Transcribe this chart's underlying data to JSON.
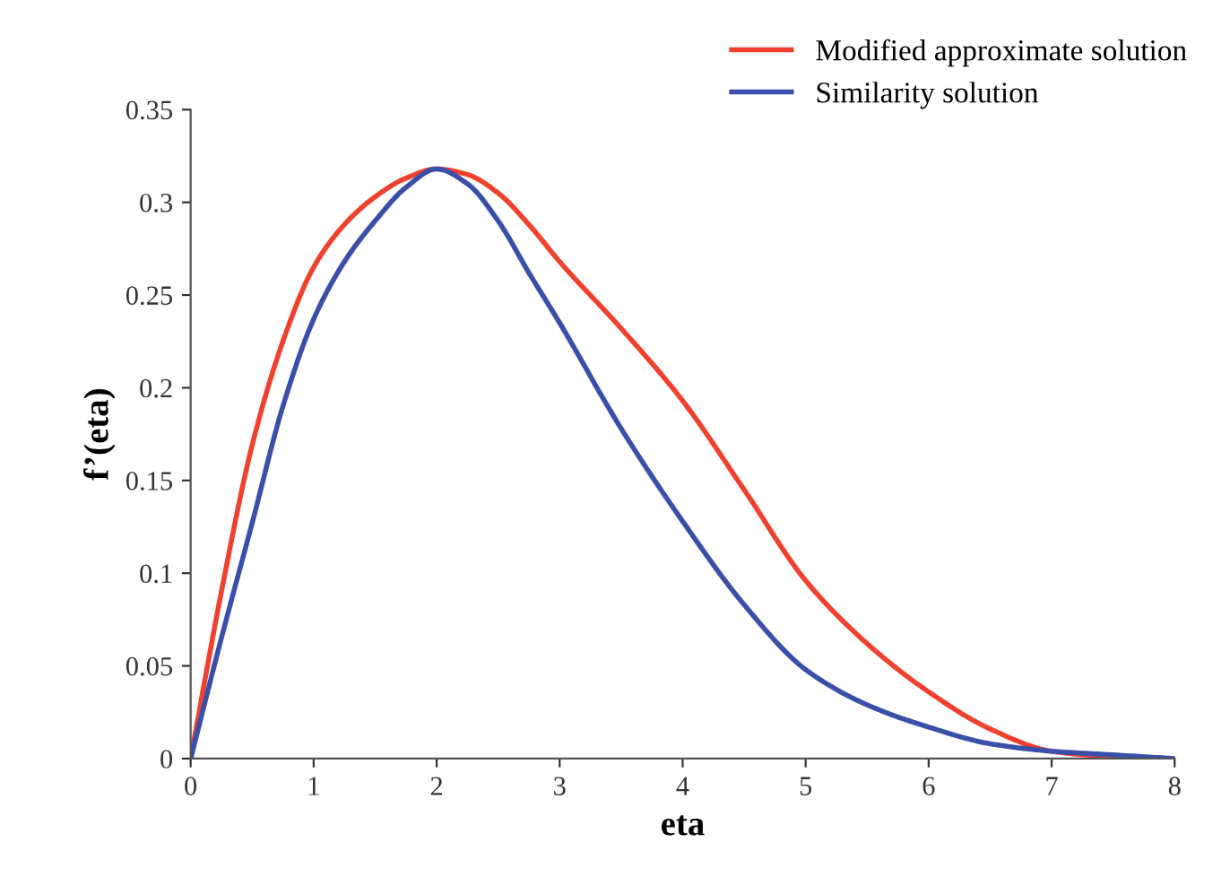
{
  "chart_data": {
    "type": "line",
    "xlabel": "eta",
    "ylabel": "f’(eta)",
    "x": [
      0,
      0.25,
      0.5,
      0.75,
      1,
      1.25,
      1.5,
      1.75,
      2,
      2.25,
      2.5,
      2.75,
      3,
      3.5,
      4,
      4.5,
      5,
      5.5,
      6,
      6.5,
      7,
      7.5,
      8
    ],
    "series": [
      {
        "name": "Modified approximate solution",
        "color": "#f0412f",
        "values": [
          0,
          0.09,
          0.169,
          0.225,
          0.265,
          0.288,
          0.303,
          0.313,
          0.318,
          0.315,
          0.305,
          0.288,
          0.268,
          0.232,
          0.193,
          0.145,
          0.096,
          0.062,
          0.036,
          0.016,
          0.004,
          0.001,
          0
        ]
      },
      {
        "name": "Similarity solution",
        "color": "#3a50a8",
        "values": [
          0,
          0.065,
          0.127,
          0.19,
          0.237,
          0.268,
          0.29,
          0.308,
          0.318,
          0.31,
          0.29,
          0.262,
          0.235,
          0.178,
          0.128,
          0.083,
          0.048,
          0.029,
          0.017,
          0.008,
          0.004,
          0.002,
          0
        ]
      }
    ],
    "xlim": [
      0,
      8
    ],
    "xticks": [
      0,
      1,
      2,
      3,
      4,
      5,
      6,
      7,
      8
    ],
    "ylim": [
      0,
      0.35
    ],
    "yticks": [
      0,
      0.05,
      0.1,
      0.15,
      0.2,
      0.25,
      0.3,
      0.35
    ],
    "grid": false,
    "legend": "top right",
    "marker": "none",
    "line_style": "solid"
  }
}
